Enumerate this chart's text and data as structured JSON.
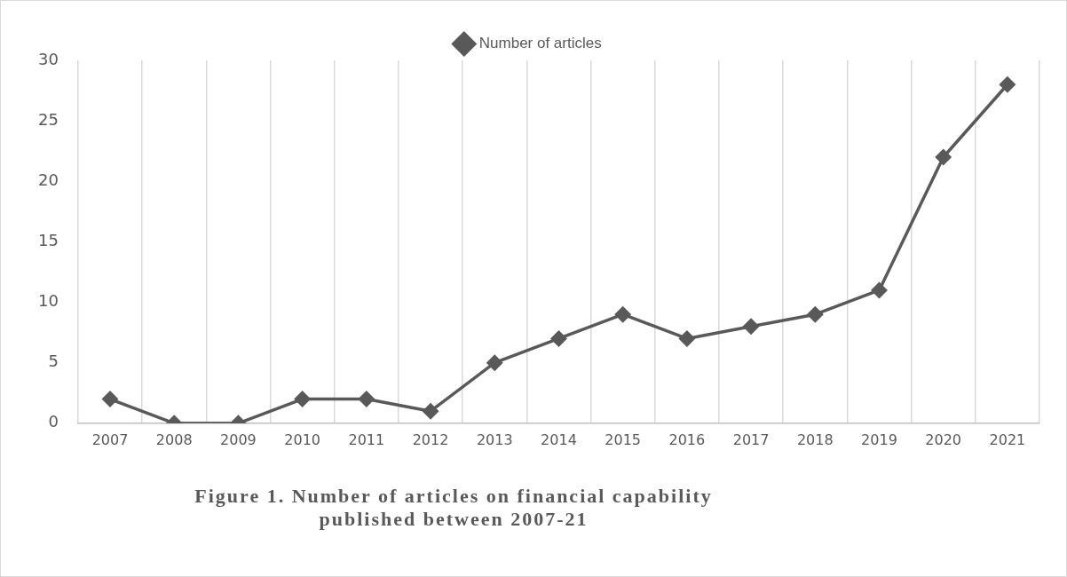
{
  "chart_data": {
    "type": "line",
    "title": "Figure 1. Number of articles on financial capability published between 2007-21",
    "categories": [
      "2007",
      "2008",
      "2009",
      "2010",
      "2011",
      "2012",
      "2013",
      "2014",
      "2015",
      "2016",
      "2017",
      "2018",
      "2019",
      "2020",
      "2021"
    ],
    "series": [
      {
        "name": "Number of articles",
        "color": "#595959",
        "values": [
          2,
          0,
          0,
          2,
          2,
          1,
          5,
          7,
          9,
          7,
          8,
          9,
          11,
          22,
          28
        ]
      }
    ],
    "ylim": [
      0,
      30
    ],
    "yticks": [
      0,
      5,
      10,
      15,
      20,
      25,
      30
    ],
    "grid": "x",
    "legend": "top",
    "marker": "diamond",
    "line_style": "solid"
  }
}
